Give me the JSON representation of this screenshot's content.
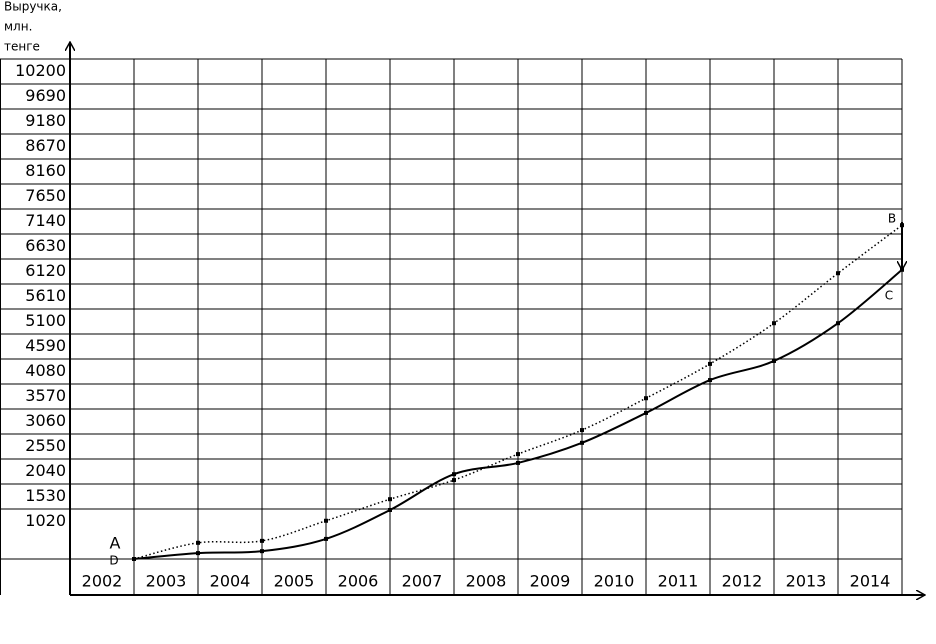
{
  "chart_data": {
    "type": "line",
    "y_label_lines": [
      "Выручка,",
      "млн.",
      "тенге"
    ],
    "categories": [
      "2002",
      "2003",
      "2004",
      "2005",
      "2006",
      "2007",
      "2008",
      "2009",
      "2010",
      "2011",
      "2012",
      "2013",
      "2014"
    ],
    "series": [
      {
        "style": "dotted",
        "color": "#000000",
        "values": [
          0,
          330,
          370,
          780,
          1220,
          1610,
          2140,
          2630,
          3280,
          3980,
          4810,
          5830,
          6810
        ]
      },
      {
        "style": "solid",
        "color": "#000000",
        "values": [
          0,
          120,
          160,
          410,
          1000,
          1730,
          1960,
          2370,
          2980,
          3650,
          4040,
          4810,
          5900
        ]
      }
    ],
    "annotations": [
      "A",
      "B",
      "C",
      "D"
    ],
    "ylim": [
      0,
      10200
    ],
    "yticks": [
      1020,
      1530,
      2040,
      2550,
      3060,
      3570,
      4080,
      4590,
      5100,
      5610,
      6120,
      6630,
      7140,
      7650,
      8160,
      8670,
      9180,
      9690,
      10200
    ],
    "grid": true
  }
}
